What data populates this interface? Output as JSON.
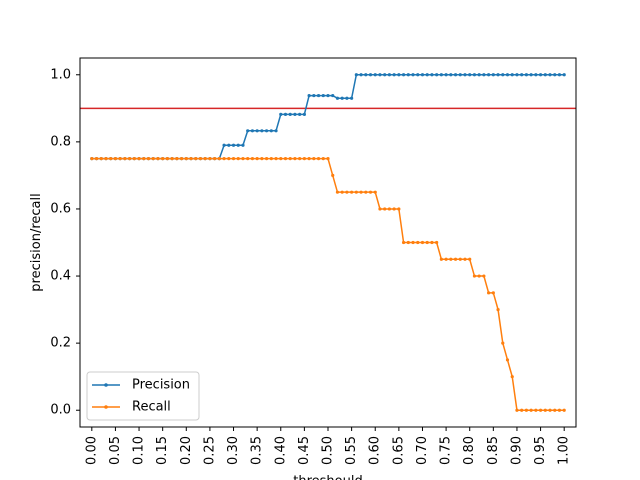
{
  "chart_data": {
    "type": "line",
    "title": "",
    "xlabel": "threshould",
    "ylabel": "precision/recall",
    "xlim": [
      -0.025,
      1.025
    ],
    "ylim": [
      -0.05,
      1.05
    ],
    "xticks": [
      0.0,
      0.05,
      0.1,
      0.15,
      0.2,
      0.25,
      0.3,
      0.35,
      0.4,
      0.45,
      0.5,
      0.55,
      0.6,
      0.65,
      0.7,
      0.75,
      0.8,
      0.85,
      0.9,
      0.95,
      1.0
    ],
    "xtick_labels": [
      "0.00",
      "0.05",
      "0.10",
      "0.15",
      "0.20",
      "0.25",
      "0.30",
      "0.35",
      "0.40",
      "0.45",
      "0.50",
      "0.55",
      "0.60",
      "0.65",
      "0.70",
      "0.75",
      "0.80",
      "0.85",
      "0.90",
      "0.95",
      "1.00"
    ],
    "yticks": [
      0.0,
      0.2,
      0.4,
      0.6,
      0.8,
      1.0
    ],
    "ytick_labels": [
      "0.0",
      "0.2",
      "0.4",
      "0.6",
      "0.8",
      "1.0"
    ],
    "grid": false,
    "legend": "lower-left",
    "hline": {
      "y": 0.9,
      "color": "#d62728"
    },
    "x": [
      0.0,
      0.01,
      0.02,
      0.03,
      0.04,
      0.05,
      0.06,
      0.07,
      0.08,
      0.09,
      0.1,
      0.11,
      0.12,
      0.13,
      0.14,
      0.15,
      0.16,
      0.17,
      0.18,
      0.19,
      0.2,
      0.21,
      0.22,
      0.23,
      0.24,
      0.25,
      0.26,
      0.27,
      0.28,
      0.29,
      0.3,
      0.31,
      0.32,
      0.33,
      0.34,
      0.35,
      0.36,
      0.37,
      0.38,
      0.39,
      0.4,
      0.41,
      0.42,
      0.43,
      0.44,
      0.45,
      0.46,
      0.47,
      0.48,
      0.49,
      0.5,
      0.51,
      0.52,
      0.53,
      0.54,
      0.55,
      0.56,
      0.57,
      0.58,
      0.59,
      0.6,
      0.61,
      0.62,
      0.63,
      0.64,
      0.65,
      0.66,
      0.67,
      0.68,
      0.69,
      0.7,
      0.71,
      0.72,
      0.73,
      0.74,
      0.75,
      0.76,
      0.77,
      0.78,
      0.79,
      0.8,
      0.81,
      0.82,
      0.83,
      0.84,
      0.85,
      0.86,
      0.87,
      0.88,
      0.89,
      0.9,
      0.91,
      0.92,
      0.93,
      0.94,
      0.95,
      0.96,
      0.97,
      0.98,
      0.99,
      1.0
    ],
    "series": [
      {
        "name": "Precision",
        "color": "#1f77b4",
        "values": [
          0.75,
          0.75,
          0.75,
          0.75,
          0.75,
          0.75,
          0.75,
          0.75,
          0.75,
          0.75,
          0.75,
          0.75,
          0.75,
          0.75,
          0.75,
          0.75,
          0.75,
          0.75,
          0.75,
          0.75,
          0.75,
          0.75,
          0.75,
          0.75,
          0.75,
          0.75,
          0.75,
          0.75,
          0.79,
          0.79,
          0.79,
          0.79,
          0.79,
          0.833,
          0.833,
          0.833,
          0.833,
          0.833,
          0.833,
          0.833,
          0.882,
          0.882,
          0.882,
          0.882,
          0.882,
          0.882,
          0.938,
          0.938,
          0.938,
          0.938,
          0.938,
          0.938,
          0.93,
          0.93,
          0.93,
          0.93,
          1.0,
          1.0,
          1.0,
          1.0,
          1.0,
          1.0,
          1.0,
          1.0,
          1.0,
          1.0,
          1.0,
          1.0,
          1.0,
          1.0,
          1.0,
          1.0,
          1.0,
          1.0,
          1.0,
          1.0,
          1.0,
          1.0,
          1.0,
          1.0,
          1.0,
          1.0,
          1.0,
          1.0,
          1.0,
          1.0,
          1.0,
          1.0,
          1.0,
          1.0,
          1.0,
          1.0,
          1.0,
          1.0,
          1.0,
          1.0,
          1.0,
          1.0,
          1.0,
          1.0,
          1.0
        ]
      },
      {
        "name": "Recall",
        "color": "#ff7f0e",
        "values": [
          0.75,
          0.75,
          0.75,
          0.75,
          0.75,
          0.75,
          0.75,
          0.75,
          0.75,
          0.75,
          0.75,
          0.75,
          0.75,
          0.75,
          0.75,
          0.75,
          0.75,
          0.75,
          0.75,
          0.75,
          0.75,
          0.75,
          0.75,
          0.75,
          0.75,
          0.75,
          0.75,
          0.75,
          0.75,
          0.75,
          0.75,
          0.75,
          0.75,
          0.75,
          0.75,
          0.75,
          0.75,
          0.75,
          0.75,
          0.75,
          0.75,
          0.75,
          0.75,
          0.75,
          0.75,
          0.75,
          0.75,
          0.75,
          0.75,
          0.75,
          0.75,
          0.7,
          0.65,
          0.65,
          0.65,
          0.65,
          0.65,
          0.65,
          0.65,
          0.65,
          0.65,
          0.6,
          0.6,
          0.6,
          0.6,
          0.6,
          0.5,
          0.5,
          0.5,
          0.5,
          0.5,
          0.5,
          0.5,
          0.5,
          0.45,
          0.45,
          0.45,
          0.45,
          0.45,
          0.45,
          0.45,
          0.4,
          0.4,
          0.4,
          0.35,
          0.35,
          0.3,
          0.2,
          0.15,
          0.1,
          0.0,
          0.0,
          0.0,
          0.0,
          0.0,
          0.0,
          0.0,
          0.0,
          0.0,
          0.0,
          0.0
        ]
      }
    ]
  }
}
